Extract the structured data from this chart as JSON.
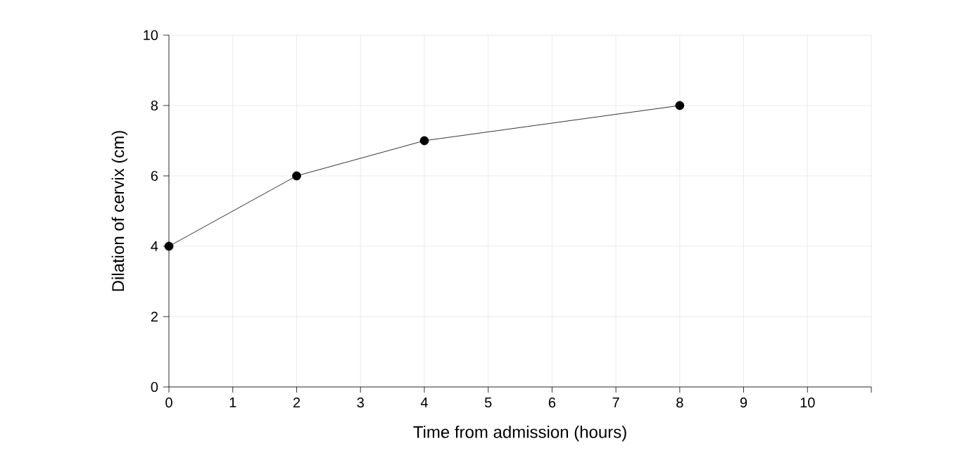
{
  "chart_data": {
    "type": "line",
    "xlabel": "Time from admission (hours)",
    "ylabel": "Dilation of cervix (cm)",
    "x": [
      0,
      2,
      4,
      8
    ],
    "values": [
      4,
      6,
      7,
      8
    ],
    "color": "#000000",
    "marker": "circle",
    "line_style": "solid",
    "xlim": [
      0,
      11
    ],
    "ylim": [
      0,
      10
    ],
    "xticks": [
      0,
      1,
      2,
      3,
      4,
      5,
      6,
      7,
      8,
      9,
      10,
      {
        "value": 11,
        "label": null
      }
    ],
    "yticks": [
      0,
      2,
      4,
      6,
      8,
      10
    ],
    "grid": true
  }
}
